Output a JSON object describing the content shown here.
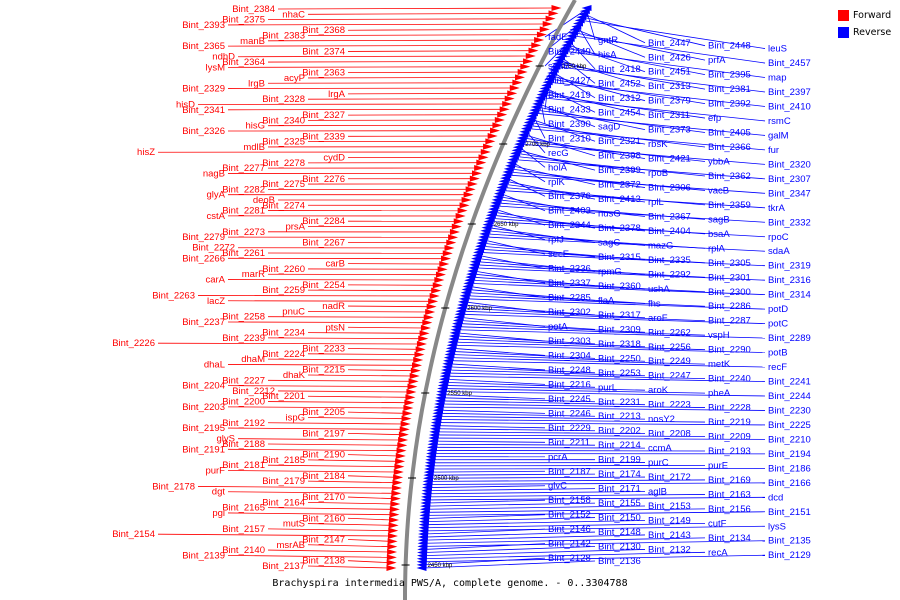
{
  "caption": "Brachyspira intermedia PWS/A, complete genome. - 0..3304788",
  "colors": {
    "forward": "#ff0000",
    "reverse": "#0000ff",
    "backbone": "#888888",
    "tick": "#000000"
  },
  "legend": [
    {
      "label": "Forward",
      "color": "#ff0000"
    },
    {
      "label": "Reverse",
      "color": "#0000ff"
    }
  ],
  "ticks": [
    "2750 kbp",
    "2700 kbp",
    "2650 kbp",
    "2600 kbp",
    "2550 kbp",
    "2500 kbp",
    "2450 kbp"
  ],
  "forward_genes": [
    "Bint_2384",
    "nhaC",
    "Bint_2375",
    "Bint_2393",
    "Bint_2368",
    "Bint_2383",
    "manB",
    "Bint_2365",
    "Bint_2374",
    "ndhD",
    "Bint_2364",
    "lysM",
    "Bint_2363",
    "acyP",
    "lrgB",
    "Bint_2329",
    "lrgA",
    "Bint_2328",
    "hisD",
    "Bint_2341",
    "Bint_2327",
    "Bint_2340",
    "hisG",
    "Bint_2326",
    "Bint_2339",
    "Bint_2325",
    "mdlB",
    "hisZ",
    "cydD",
    "Bint_2278",
    "Bint_2277",
    "nagB",
    "Bint_2276",
    "Bint_2275",
    "Bint_2282",
    "glyA",
    "deoB",
    "Bint_2274",
    "Bint_2281",
    "cstA",
    "Bint_2284",
    "prsA",
    "Bint_2273",
    "Bint_2279",
    "Bint_2267",
    "Bint_2272",
    "Bint_2261",
    "Bint_2266",
    "carB",
    "Bint_2260",
    "marR",
    "carA",
    "Bint_2254",
    "Bint_2259",
    "Bint_2263",
    "lacZ",
    "nadR",
    "pnuC",
    "Bint_2258",
    "Bint_2237",
    "ptsN",
    "Bint_2234",
    "Bint_2239",
    "Bint_2226",
    "Bint_2233",
    "Bint_2224",
    "dhaM",
    "dhaL",
    "Bint_2215",
    "dhaK",
    "Bint_2227",
    "Bint_2204",
    "Bint_2212",
    "Bint_2201",
    "Bint_2200",
    "Bint_2203",
    "Bint_2205",
    "ispG",
    "Bint_2192",
    "Bint_2195",
    "Bint_2197",
    "glyS",
    "Bint_2188",
    "Bint_2191",
    "Bint_2190",
    "Bint_2185",
    "Bint_2181",
    "purF",
    "Bint_2184",
    "Bint_2179",
    "Bint_2178",
    "dgt",
    "Bint_2170",
    "Bint_2164",
    "Bint_2165",
    "pgi",
    "Bint_2160",
    "mutS",
    "Bint_2157",
    "Bint_2154",
    "Bint_2147",
    "msrAB",
    "Bint_2140",
    "Bint_2139",
    "Bint_2138",
    "Bint_2137"
  ],
  "reverse_genes": [
    "fadE",
    "gntR",
    "Bint_2447",
    "Bint_2448",
    "leuS",
    "Bint_2449",
    "hisA",
    "Bint_2426",
    "prfA",
    "Bint_2457",
    "sdaB",
    "Bint_2418",
    "Bint_2451",
    "Bint_2395",
    "map",
    "Bint_2427",
    "Bint_2452",
    "Bint_2313",
    "Bint_2381",
    "Bint_2397",
    "Bint_2419",
    "Bint_2312",
    "Bint_2379",
    "Bint_2392",
    "Bint_2410",
    "Bint_2433",
    "Bint_2454",
    "Bint_2311",
    "efp",
    "rsmC",
    "Bint_2390",
    "sagD",
    "Bint_2373",
    "Bint_2405",
    "galM",
    "Bint_2310",
    "Bint_2321",
    "rbsK",
    "Bint_2366",
    "fur",
    "recG",
    "Bint_2398",
    "Bint_2421",
    "ybbA",
    "Bint_2320",
    "holA",
    "Bint_2399",
    "rpoB",
    "Bint_2362",
    "Bint_2307",
    "rplK",
    "Bint_2372",
    "Bint_2306",
    "vacB",
    "Bint_2347",
    "Bint_2376",
    "Bint_2413",
    "rplL",
    "Bint_2359",
    "tkrA",
    "Bint_2403",
    "nusG",
    "Bint_2367",
    "sagB",
    "Bint_2332",
    "Bint_2344",
    "Bint_2378",
    "Bint_2404",
    "bsaA",
    "rpoC",
    "rpIJ",
    "sagC",
    "mazG",
    "rplA",
    "sdaA",
    "secE",
    "Bint_2315",
    "Bint_2335",
    "Bint_2305",
    "Bint_2319",
    "Bint_2336",
    "rpmG",
    "Bint_2292",
    "Bint_2301",
    "Bint_2316",
    "Bint_2337",
    "Bint_2360",
    "ushA",
    "Bint_2300",
    "Bint_2314",
    "Bint_2285",
    "flaA",
    "fhs",
    "Bint_2286",
    "potD",
    "Bint_2302",
    "Bint_2317",
    "aroF",
    "Bint_2287",
    "potC",
    "potA",
    "Bint_2309",
    "Bint_2262",
    "vspH",
    "Bint_2289",
    "Bint_2303",
    "Bint_2318",
    "Bint_2256",
    "Bint_2290",
    "potB",
    "Bint_2304",
    "Bint_2250",
    "Bint_2249",
    "metK",
    "recF",
    "Bint_2248",
    "Bint_2253",
    "Bint_2247",
    "Bint_2240",
    "Bint_2241",
    "Bint_2216",
    "purL",
    "aroK",
    "pheA",
    "Bint_2244",
    "Bint_2245",
    "Bint_2231",
    "Bint_2223",
    "Bint_2228",
    "Bint_2230",
    "Bint_2246",
    "Bint_2213",
    "nosY2",
    "Bint_2219",
    "Bint_2225",
    "Bint_2229",
    "Bint_2202",
    "Bint_2208",
    "Bint_2209",
    "Bint_2210",
    "Bint_2211",
    "Bint_2214",
    "ccmA",
    "Bint_2193",
    "Bint_2194",
    "pcrA",
    "Bint_2199",
    "purC",
    "purE",
    "Bint_2186",
    "Bint_2187",
    "Bint_2174",
    "Bint_2172",
    "Bint_2169",
    "Bint_2166",
    "glvC",
    "Bint_2171",
    "aglB",
    "Bint_2163",
    "dcd",
    "Bint_2158",
    "Bint_2155",
    "Bint_2153",
    "Bint_2156",
    "Bint_2151",
    "Bint_2152",
    "Bint_2150",
    "Bint_2149",
    "cutF",
    "lysS",
    "Bint_2146",
    "Bint_2148",
    "Bint_2143",
    "Bint_2134",
    "Bint_2135",
    "Bint_2142",
    "Bint_2130",
    "Bint_2132",
    "recA",
    "Bint_2129",
    "Bint_2128",
    "Bint_2136"
  ]
}
